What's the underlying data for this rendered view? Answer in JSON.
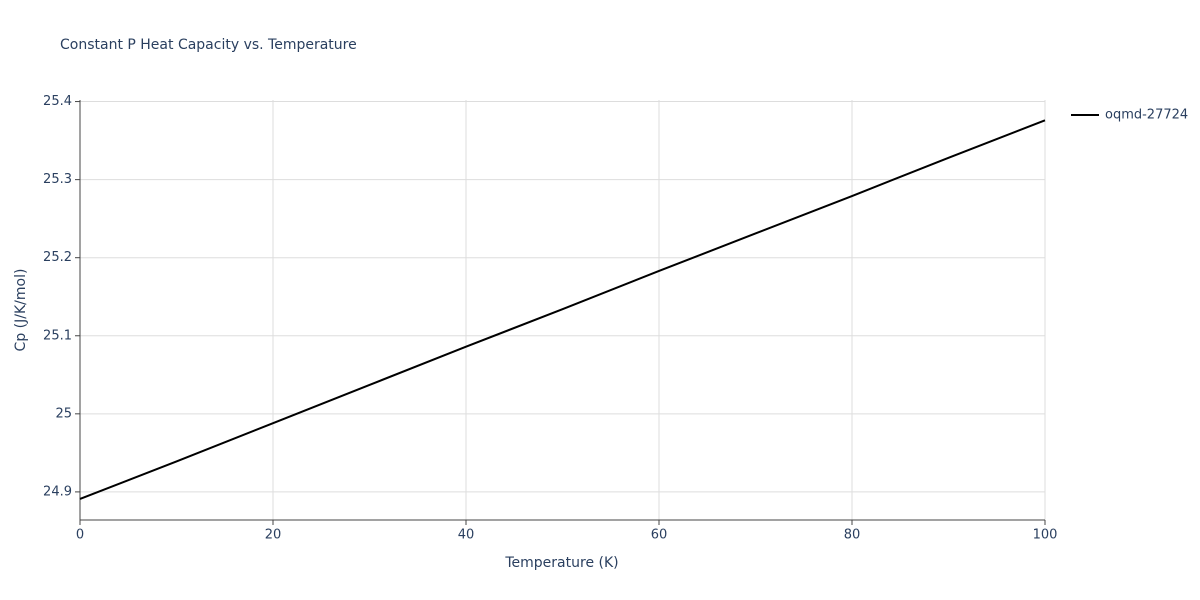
{
  "chart_data": {
    "type": "line",
    "title": "Constant P Heat Capacity vs. Temperature",
    "x_label": "Temperature (K)",
    "y_label": "Cp (J/K/mol)",
    "x": [
      0,
      10,
      20,
      30,
      40,
      50,
      60,
      70,
      80,
      90,
      100
    ],
    "series": [
      {
        "name": "oqmd-27724",
        "color": "#000000",
        "values": [
          24.891,
          24.939,
          24.988,
          25.037,
          25.086,
          25.134,
          25.183,
          25.231,
          25.279,
          25.328,
          25.376
        ]
      }
    ],
    "xlim": [
      0,
      100
    ],
    "xticks": [
      0,
      20,
      40,
      60,
      80,
      100
    ],
    "ylim": [
      24.864,
      25.402
    ],
    "yticks": [
      24.9,
      25,
      25.1,
      25.2,
      25.3,
      25.4
    ],
    "grid": true,
    "legend": "right"
  }
}
